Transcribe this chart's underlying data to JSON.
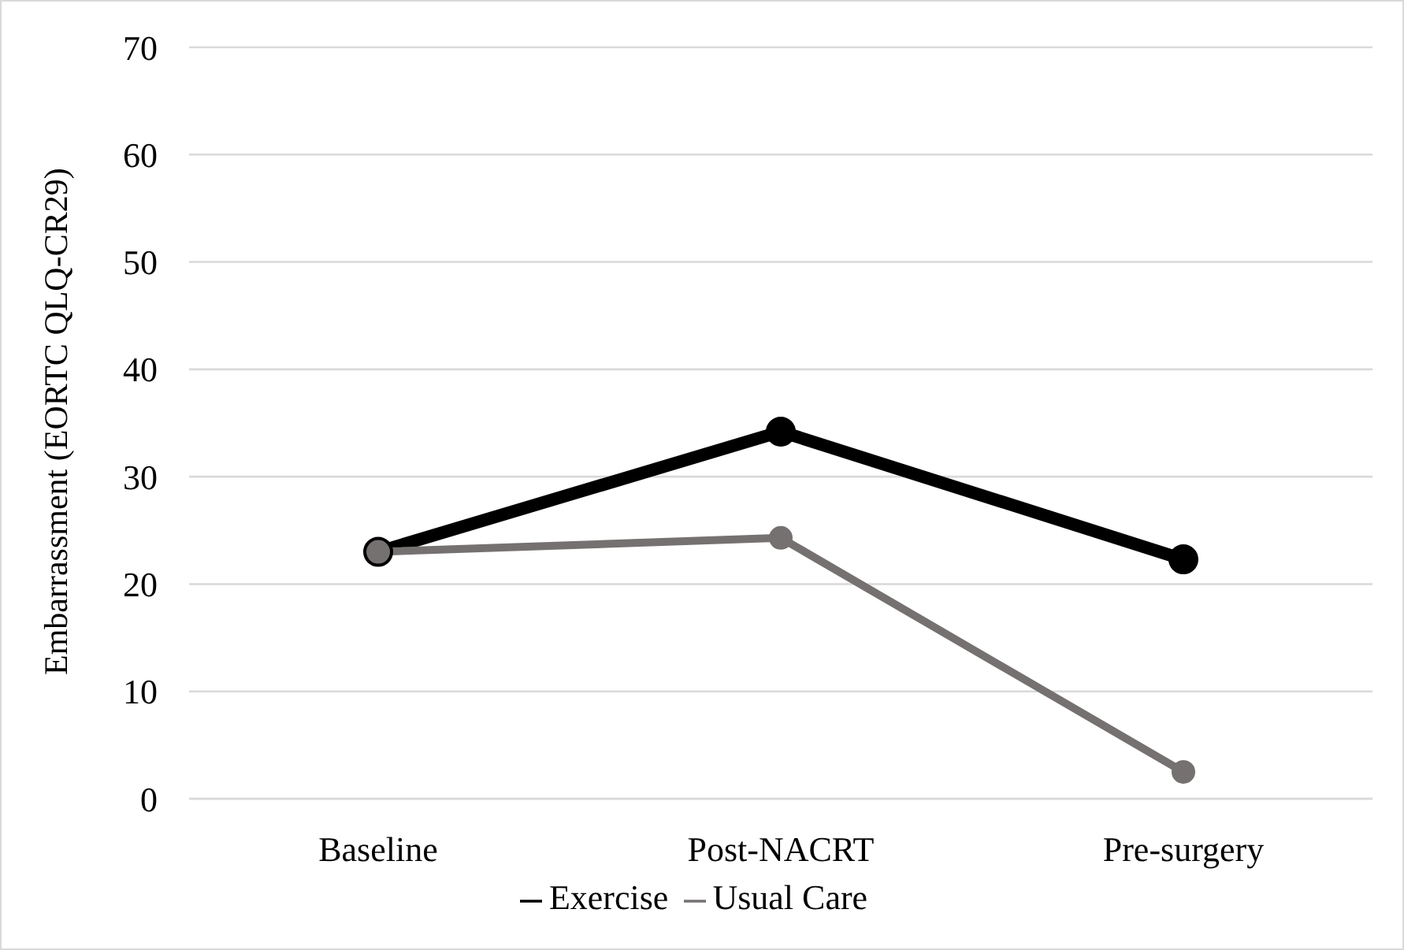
{
  "chart_data": {
    "type": "line",
    "ylabel": "Embarrassment (EORTC QLQ-CR29)",
    "categories": [
      "Baseline",
      "Post-NACRT",
      "Pre-surgery"
    ],
    "series": [
      {
        "name": "Exercise",
        "color": "#000000",
        "values": [
          23,
          34.2,
          22.3
        ]
      },
      {
        "name": "Usual Care",
        "color": "#767171",
        "values": [
          23,
          24.3,
          2.5
        ]
      }
    ],
    "ylim": [
      0,
      70
    ],
    "yticks": [
      0,
      10,
      20,
      30,
      40,
      50,
      60,
      70
    ],
    "grid": "y",
    "legend": "bottom",
    "marker": "circle",
    "line_style": "solid"
  }
}
